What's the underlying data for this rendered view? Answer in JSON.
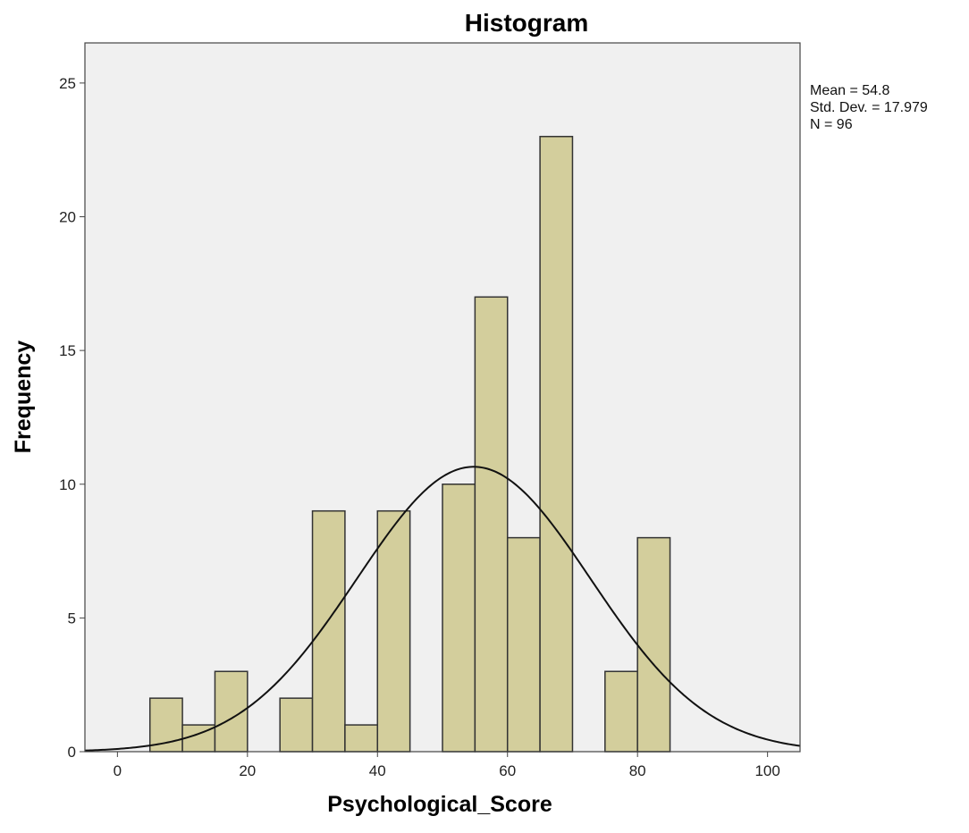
{
  "chart_data": {
    "type": "bar",
    "subtype": "histogram",
    "title": "Histogram",
    "xlabel": "Psychological_Score",
    "ylabel": "Frequency",
    "xlim": [
      -5,
      105
    ],
    "ylim": [
      0,
      26.5
    ],
    "x_ticks": [
      0,
      20,
      40,
      60,
      80,
      100
    ],
    "y_ticks": [
      0,
      5,
      10,
      15,
      20,
      25
    ],
    "bin_width": 5,
    "bins": [
      {
        "start": 5,
        "end": 10,
        "count": 2
      },
      {
        "start": 10,
        "end": 15,
        "count": 1
      },
      {
        "start": 15,
        "end": 20,
        "count": 3
      },
      {
        "start": 25,
        "end": 30,
        "count": 2
      },
      {
        "start": 30,
        "end": 35,
        "count": 9
      },
      {
        "start": 35,
        "end": 40,
        "count": 1
      },
      {
        "start": 40,
        "end": 45,
        "count": 9
      },
      {
        "start": 50,
        "end": 55,
        "count": 10
      },
      {
        "start": 55,
        "end": 60,
        "count": 17
      },
      {
        "start": 60,
        "end": 65,
        "count": 8
      },
      {
        "start": 65,
        "end": 70,
        "count": 23
      },
      {
        "start": 75,
        "end": 80,
        "count": 3
      },
      {
        "start": 80,
        "end": 85,
        "count": 8
      }
    ],
    "normal_curve": {
      "mean": 54.8,
      "std_dev": 17.979,
      "n": 96,
      "bin_width": 5
    },
    "stats": {
      "mean": "Mean = 54.8",
      "std_dev": "Std. Dev. = 17.979",
      "n": "N = 96"
    },
    "grid": false,
    "colors": {
      "plot_background": "#f0f0f0",
      "bar_fill": "#d3ce9c",
      "bar_stroke": "#333333",
      "curve": "#111111",
      "frame": "#444444"
    }
  }
}
